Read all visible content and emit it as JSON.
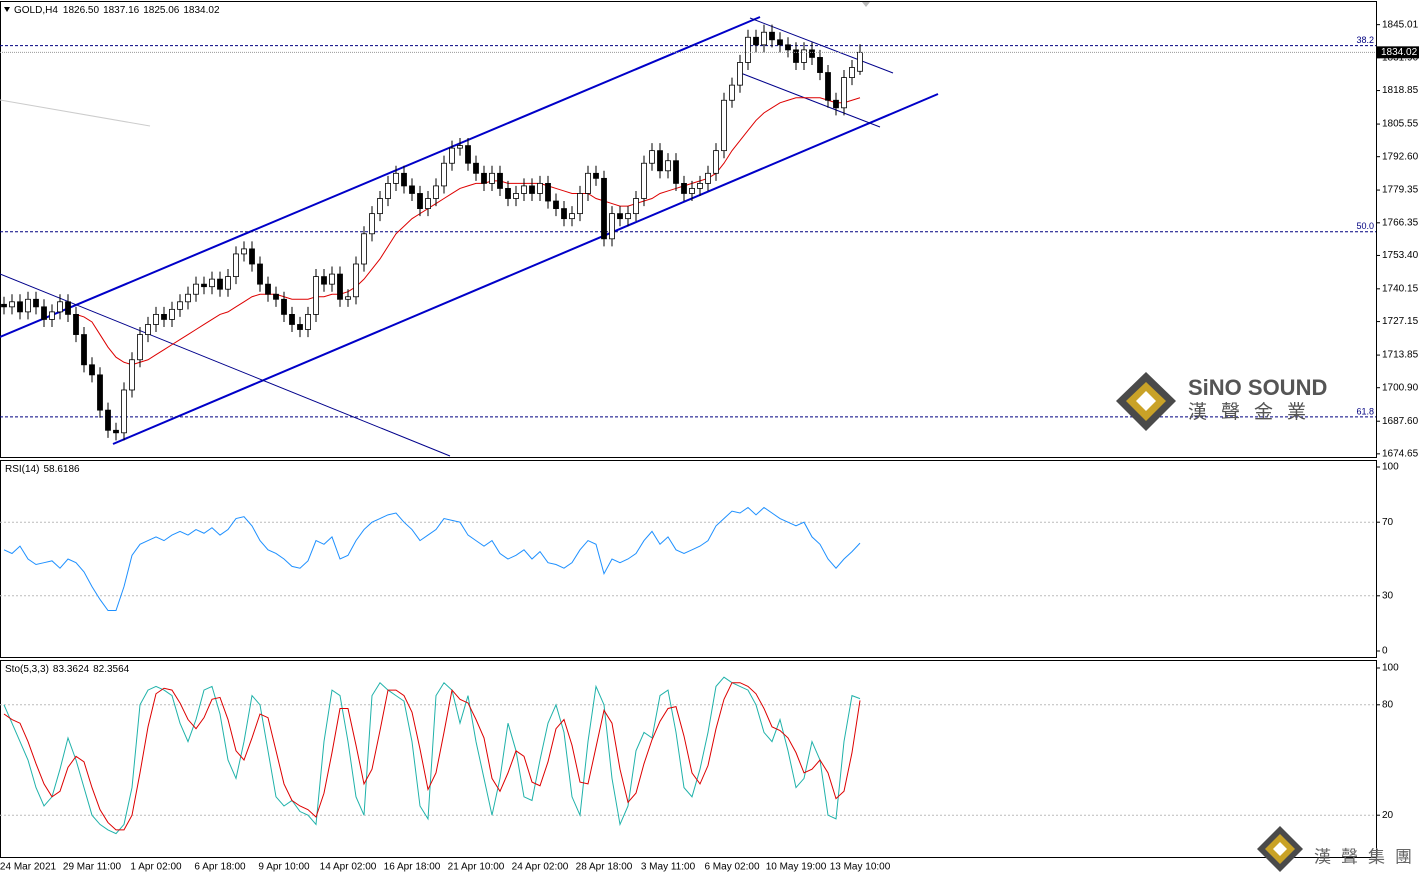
{
  "chart_data": [
    {
      "type": "candlestick",
      "title": "GOLD,H4",
      "ohlc_labels": [
        "1826.50",
        "1837.16",
        "1825.06",
        "1834.02"
      ],
      "last_label": "1834.02",
      "categories": [
        null,
        null,
        null,
        "24 Mar 2021",
        null,
        null,
        null,
        null,
        null,
        null,
        null,
        "29 Mar 11:00",
        null,
        null,
        null,
        null,
        null,
        null,
        null,
        "1 Apr 02:00",
        null,
        null,
        null,
        null,
        null,
        null,
        null,
        "6 Apr 18:00",
        null,
        null,
        null,
        null,
        null,
        null,
        null,
        "9 Apr 10:00",
        null,
        null,
        null,
        null,
        null,
        null,
        null,
        "14 Apr 02:00",
        null,
        null,
        null,
        null,
        null,
        null,
        null,
        "16 Apr 18:00",
        null,
        null,
        null,
        null,
        null,
        null,
        null,
        "21 Apr 10:00",
        null,
        null,
        null,
        null,
        null,
        null,
        null,
        "24 Apr 02:00",
        null,
        null,
        null,
        null,
        null,
        null,
        null,
        "28 Apr 18:00",
        null,
        null,
        null,
        null,
        null,
        null,
        null,
        "3 May 11:00",
        null,
        null,
        null,
        null,
        null,
        null,
        null,
        "6 May 02:00",
        null,
        null,
        null,
        null,
        null,
        null,
        null,
        "10 May 19:00",
        null,
        null,
        null,
        null,
        null,
        null,
        null,
        "13 May 10:00"
      ],
      "open": [
        1734,
        1733,
        1735,
        1731,
        1736,
        1733,
        1728,
        1731,
        1735,
        1730,
        1722,
        1710,
        1706,
        1692,
        1684,
        1683,
        1700,
        1712,
        1722,
        1726,
        1730,
        1728,
        1732,
        1735,
        1738,
        1742,
        1741,
        1744,
        1740,
        1745,
        1754,
        1756,
        1750,
        1742,
        1738,
        1736,
        1730,
        1726,
        1724,
        1730,
        1745,
        1742,
        1746,
        1736,
        1737,
        1750,
        1762,
        1770,
        1776,
        1782,
        1786,
        1781,
        1778,
        1772,
        1776,
        1781,
        1790,
        1796,
        1797,
        1790,
        1786,
        1782,
        1786,
        1780,
        1776,
        1778,
        1781,
        1778,
        1782,
        1775,
        1772,
        1768,
        1770,
        1778,
        1786,
        1784,
        1760,
        1770,
        1768,
        1770,
        1776,
        1790,
        1795,
        1787,
        1791,
        1782,
        1778,
        1780,
        1782,
        1786,
        1795,
        1815,
        1821,
        1830,
        1840,
        1837,
        1842,
        1839,
        1837,
        1835,
        1830,
        1835,
        1832,
        1826,
        1815,
        1812,
        1824,
        1826.5
      ],
      "high": [
        1737,
        1738,
        1738,
        1739,
        1739,
        1736,
        1734,
        1738,
        1738,
        1733,
        1725,
        1713,
        1709,
        1695,
        1687,
        1703,
        1715,
        1725,
        1729,
        1733,
        1733,
        1735,
        1738,
        1741,
        1745,
        1745,
        1747,
        1747,
        1748,
        1757,
        1759,
        1759,
        1753,
        1745,
        1741,
        1739,
        1733,
        1729,
        1733,
        1748,
        1748,
        1749,
        1749,
        1740,
        1753,
        1765,
        1773,
        1779,
        1785,
        1789,
        1789,
        1784,
        1781,
        1779,
        1784,
        1793,
        1799,
        1800,
        1800,
        1793,
        1789,
        1789,
        1789,
        1783,
        1781,
        1784,
        1784,
        1785,
        1785,
        1778,
        1775,
        1773,
        1781,
        1789,
        1789,
        1787,
        1773,
        1773,
        1773,
        1779,
        1793,
        1798,
        1798,
        1794,
        1794,
        1785,
        1783,
        1785,
        1789,
        1798,
        1818,
        1824,
        1833,
        1843,
        1843,
        1845,
        1845,
        1842,
        1840,
        1838,
        1838,
        1838,
        1835,
        1829,
        1818,
        1827,
        1831,
        1837.16
      ],
      "low": [
        1730,
        1730,
        1728,
        1728,
        1730,
        1725,
        1725,
        1728,
        1727,
        1719,
        1707,
        1703,
        1689,
        1681,
        1680,
        1680,
        1697,
        1709,
        1719,
        1723,
        1725,
        1725,
        1729,
        1732,
        1735,
        1738,
        1738,
        1737,
        1737,
        1742,
        1751,
        1747,
        1739,
        1735,
        1733,
        1727,
        1723,
        1721,
        1721,
        1727,
        1739,
        1739,
        1733,
        1733,
        1734,
        1747,
        1759,
        1767,
        1773,
        1779,
        1778,
        1775,
        1769,
        1769,
        1773,
        1778,
        1787,
        1793,
        1787,
        1783,
        1779,
        1779,
        1777,
        1773,
        1773,
        1775,
        1775,
        1775,
        1772,
        1769,
        1765,
        1765,
        1767,
        1775,
        1781,
        1757,
        1757,
        1765,
        1765,
        1767,
        1773,
        1787,
        1784,
        1784,
        1779,
        1775,
        1775,
        1777,
        1779,
        1783,
        1792,
        1812,
        1818,
        1827,
        1834,
        1834,
        1836,
        1834,
        1832,
        1827,
        1827,
        1829,
        1823,
        1812,
        1809,
        1809,
        1821,
        1825.06
      ],
      "close": [
        1733,
        1735,
        1731,
        1736,
        1733,
        1728,
        1731,
        1735,
        1730,
        1722,
        1710,
        1706,
        1692,
        1684,
        1683,
        1700,
        1712,
        1722,
        1726,
        1730,
        1728,
        1732,
        1735,
        1738,
        1742,
        1741,
        1744,
        1740,
        1745,
        1754,
        1756,
        1750,
        1742,
        1738,
        1736,
        1730,
        1726,
        1724,
        1730,
        1745,
        1742,
        1746,
        1736,
        1737,
        1750,
        1762,
        1770,
        1776,
        1782,
        1786,
        1781,
        1778,
        1772,
        1776,
        1781,
        1790,
        1796,
        1797,
        1790,
        1786,
        1782,
        1786,
        1780,
        1776,
        1778,
        1781,
        1778,
        1782,
        1775,
        1772,
        1768,
        1770,
        1778,
        1786,
        1784,
        1760,
        1770,
        1768,
        1770,
        1776,
        1790,
        1795,
        1787,
        1791,
        1782,
        1778,
        1780,
        1782,
        1786,
        1795,
        1815,
        1821,
        1830,
        1840,
        1837,
        1842,
        1839,
        1837,
        1835,
        1830,
        1835,
        1832,
        1826,
        1815,
        1812,
        1824,
        1828,
        1834.02
      ],
      "up_color": "#ffffff",
      "down_color": "#000000",
      "ma": {
        "color": "#dd0000",
        "values": [
          null,
          null,
          null,
          null,
          null,
          null,
          null,
          null,
          null,
          1730,
          1729,
          1727,
          1722,
          1717,
          1713,
          1711,
          1710,
          1711,
          1712,
          1714,
          1716,
          1718,
          1720,
          1722,
          1724,
          1726,
          1728,
          1730,
          1731,
          1733,
          1735,
          1737,
          1738,
          1738,
          1738,
          1737,
          1736,
          1736,
          1736,
          1737,
          1737,
          1738,
          1738,
          1739,
          1741,
          1744,
          1748,
          1752,
          1757,
          1762,
          1765,
          1768,
          1770,
          1772,
          1774,
          1776,
          1778,
          1780,
          1781,
          1782,
          1782,
          1783,
          1783,
          1782,
          1782,
          1782,
          1782,
          1782,
          1781,
          1780,
          1779,
          1778,
          1778,
          1778,
          1776,
          1775,
          1774,
          1773,
          1773,
          1774,
          1775,
          1776,
          1778,
          1779,
          1780,
          1781,
          1782,
          1783,
          1784,
          1786,
          1790,
          1795,
          1799,
          1803,
          1807,
          1810,
          1812,
          1814,
          1815,
          1816,
          1816,
          1816,
          1816,
          1815,
          1814,
          1814,
          1815,
          1816
        ]
      },
      "levels": [
        {
          "value": 1836.67,
          "label": "38.2"
        },
        {
          "value": 1762.8,
          "label": "50.0"
        },
        {
          "value": 1689.3,
          "label": "61.8"
        }
      ],
      "level_color": "#000080",
      "ylim": [
        1673,
        1854
      ],
      "yticks": [
        {
          "value": 1845.01,
          "label": "1845.01"
        },
        {
          "value": 1831.9,
          "label": "1831.90"
        },
        {
          "value": 1818.85,
          "label": "1818.85"
        },
        {
          "value": 1805.55,
          "label": "1805.55"
        },
        {
          "value": 1792.6,
          "label": "1792.60"
        },
        {
          "value": 1779.35,
          "label": "1779.35"
        },
        {
          "value": 1766.35,
          "label": "1766.35"
        },
        {
          "value": 1753.4,
          "label": "1753.40"
        },
        {
          "value": 1740.15,
          "label": "1740.15"
        },
        {
          "value": 1727.15,
          "label": "1727.15"
        },
        {
          "value": 1713.85,
          "label": "1713.85"
        },
        {
          "value": 1700.9,
          "label": "1700.90"
        },
        {
          "value": 1687.6,
          "label": "1687.60"
        },
        {
          "value": 1674.65,
          "label": "1674.65"
        }
      ],
      "grid": false
    },
    {
      "type": "line",
      "title": "RSI(14)",
      "color": "#1e90ff",
      "values": [
        55,
        53,
        57,
        50,
        47,
        48,
        49,
        45,
        50,
        48,
        43,
        35,
        28,
        22,
        22,
        35,
        52,
        58,
        60,
        62,
        60,
        63,
        65,
        63,
        66,
        64,
        67,
        63,
        66,
        72,
        73,
        68,
        60,
        55,
        53,
        50,
        46,
        45,
        49,
        60,
        58,
        62,
        50,
        52,
        60,
        66,
        70,
        72,
        74,
        75,
        70,
        66,
        60,
        63,
        66,
        72,
        71,
        70,
        63,
        60,
        57,
        60,
        53,
        50,
        52,
        55,
        50,
        54,
        48,
        47,
        45,
        48,
        55,
        60,
        58,
        42,
        50,
        48,
        50,
        53,
        60,
        65,
        58,
        62,
        55,
        53,
        55,
        57,
        60,
        68,
        72,
        76,
        75,
        78,
        74,
        78,
        75,
        72,
        70,
        68,
        70,
        62,
        58,
        50,
        45,
        50,
        54,
        58.6186
      ],
      "ylim": [
        0,
        100
      ],
      "yticks": [
        100,
        70,
        30,
        0
      ],
      "levels": [
        70,
        30
      ],
      "grid": false
    },
    {
      "type": "line",
      "title": "Sto(5,3,3)",
      "series": [
        {
          "color": "#20b2aa",
          "values": [
            80,
            70,
            60,
            50,
            35,
            25,
            30,
            45,
            62,
            50,
            35,
            20,
            15,
            12,
            10,
            15,
            35,
            80,
            88,
            90,
            88,
            85,
            70,
            60,
            72,
            88,
            90,
            75,
            50,
            40,
            60,
            85,
            80,
            55,
            30,
            25,
            28,
            22,
            20,
            15,
            60,
            88,
            85,
            60,
            30,
            20,
            85,
            92,
            88,
            85,
            82,
            60,
            25,
            18,
            85,
            92,
            88,
            70,
            85,
            60,
            40,
            20,
            40,
            70,
            55,
            30,
            28,
            50,
            70,
            80,
            65,
            30,
            20,
            60,
            90,
            80,
            40,
            15,
            25,
            55,
            65,
            62,
            85,
            88,
            65,
            35,
            30,
            45,
            65,
            90,
            95,
            92,
            90,
            88,
            80,
            65,
            60,
            72,
            55,
            35,
            40,
            60,
            50,
            20,
            18,
            60,
            85,
            83.3624
          ]
        },
        {
          "color": "#dd0000",
          "values": [
            75,
            72,
            70,
            60,
            48,
            37,
            30,
            33,
            46,
            52,
            49,
            35,
            23,
            16,
            12,
            12,
            20,
            43,
            68,
            86,
            89,
            88,
            81,
            72,
            67,
            73,
            83,
            84,
            72,
            55,
            50,
            62,
            75,
            73,
            55,
            37,
            28,
            25,
            23,
            19,
            32,
            54,
            78,
            78,
            58,
            37,
            45,
            66,
            88,
            88,
            85,
            76,
            56,
            34,
            43,
            65,
            88,
            83,
            81,
            72,
            62,
            40,
            33,
            43,
            55,
            52,
            38,
            36,
            49,
            67,
            72,
            58,
            38,
            37,
            57,
            77,
            70,
            45,
            27,
            32,
            48,
            61,
            71,
            78,
            79,
            63,
            43,
            37,
            47,
            67,
            83,
            92,
            92,
            90,
            86,
            78,
            68,
            66,
            62,
            54,
            43,
            45,
            50,
            43,
            29,
            33,
            54,
            82.3564
          ]
        }
      ],
      "ylim": [
        0,
        100
      ],
      "yticks": [
        100,
        80,
        20
      ],
      "levels": [
        80,
        20
      ],
      "grid": false
    }
  ],
  "logo": {
    "brand": "SiNO SOUND",
    "chinese": "漢聲金業",
    "footer": "漢聲集團"
  }
}
